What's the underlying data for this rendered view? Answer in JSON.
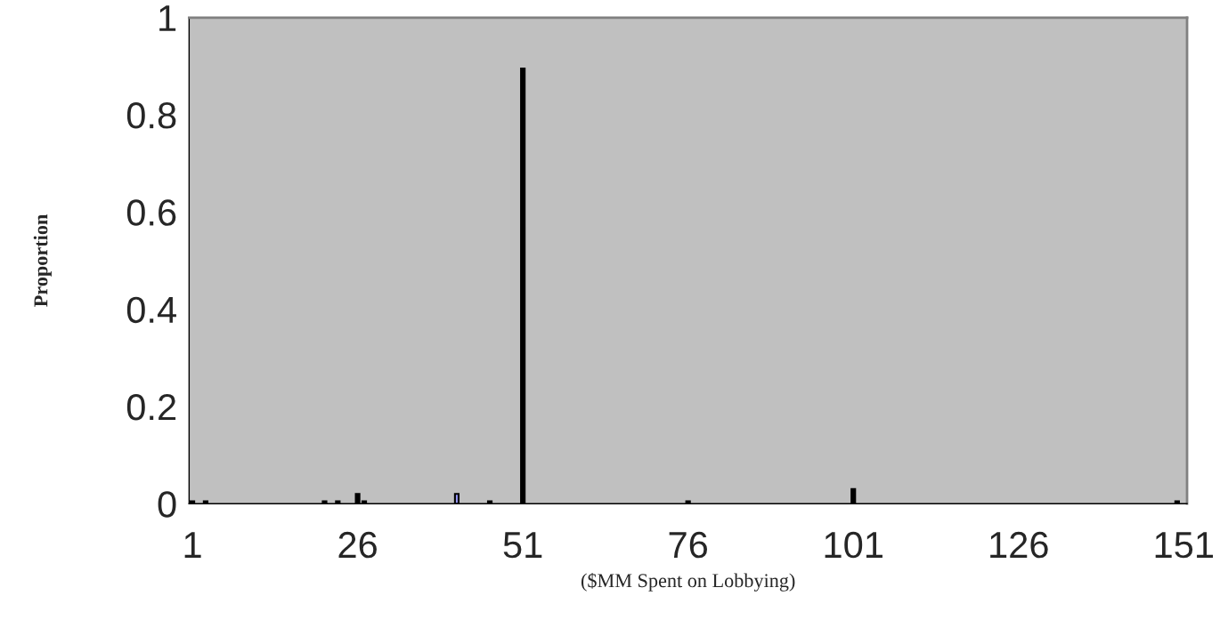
{
  "chart_data": {
    "type": "bar",
    "xlabel": "($MM Spent on Lobbying)",
    "ylabel": "Proportion",
    "x": [
      1,
      3,
      21,
      23,
      26,
      27,
      41,
      46,
      51,
      76,
      101,
      150
    ],
    "values": [
      0.005,
      0.005,
      0.005,
      0.005,
      0.02,
      0.005,
      0.02,
      0.005,
      0.895,
      0.005,
      0.03,
      0.005
    ],
    "colors": [
      "#000000",
      "#000000",
      "#000000",
      "#000000",
      "#000000",
      "#000000",
      "#9999ff",
      "#000000",
      "#000000",
      "#000000",
      "#000000",
      "#000000"
    ],
    "xlim": [
      0.5,
      151.5
    ],
    "xticks": [
      1,
      26,
      51,
      76,
      101,
      126,
      151
    ],
    "ylim": [
      0,
      1
    ],
    "yticks": [
      0,
      {
        "value": 0.2,
        "label": "0.2"
      },
      {
        "value": 0.4,
        "label": "0.4"
      },
      {
        "value": 0.6,
        "label": "0.6"
      },
      {
        "value": 0.8,
        "label": "0.8"
      },
      1
    ],
    "grid": false,
    "legend": false
  }
}
